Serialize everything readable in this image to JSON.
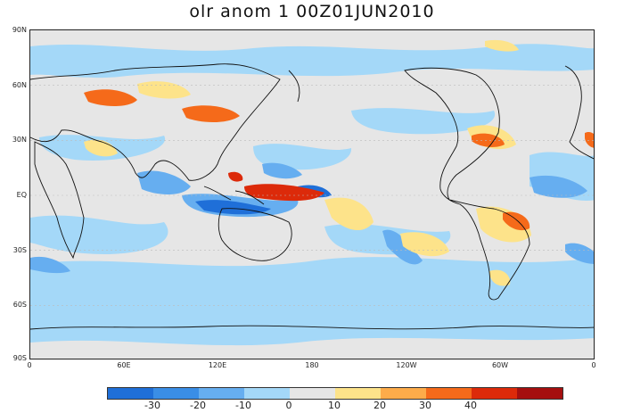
{
  "title": "olr anom 1 00Z01JUN2010",
  "lat_labels": [
    "90N",
    "60N",
    "30N",
    "EQ",
    "30S",
    "60S",
    "90S"
  ],
  "lon_labels": [
    "0",
    "60E",
    "120E",
    "180",
    "120W",
    "60W",
    "0"
  ],
  "colorbar": {
    "labels": [
      "-30",
      "-20",
      "-10",
      "0",
      "10",
      "20",
      "30",
      "40"
    ],
    "colors": [
      "#1f6fd8",
      "#3a8ee6",
      "#66aef0",
      "#a4d8f8",
      "#e6e6e6",
      "#fde38a",
      "#fdac4a",
      "#f56a1a",
      "#dc2a0a",
      "#a50f0f"
    ]
  }
}
